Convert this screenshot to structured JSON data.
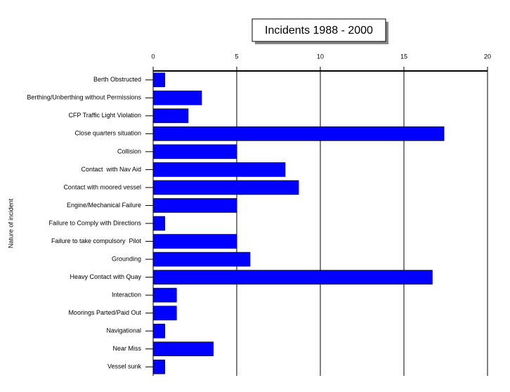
{
  "chart_data": {
    "type": "bar",
    "orientation": "horizontal",
    "title": "Incidents 1988 - 2000",
    "y_label": "Nature of incident",
    "categories": [
      "Berth Obstructed",
      "Berthing/Unberthing without Permissions",
      "CFP Traffic Light Violation",
      "Close quarters situation",
      "Collision",
      "Contact  with Nav Aid",
      "Contact with moored vessel",
      "Engine/Mechanical Failure",
      "Failure to Comply with Directions",
      "Failure to take compulsory  Pilot",
      "Grounding",
      "Heavy Contact with Quay",
      "Interaction",
      "Moorings Parted/Paid Out",
      "Navigational",
      "Near Miss",
      "Vessel sunk"
    ],
    "values": [
      0.7,
      2.9,
      2.1,
      17.4,
      5,
      7.9,
      8.7,
      5,
      0.7,
      5,
      5.8,
      16.7,
      1.4,
      1.4,
      0.7,
      3.6,
      0.7
    ],
    "color": "#0000ff",
    "xlim": [
      0,
      20
    ],
    "xticks": [
      0,
      5,
      10,
      15,
      20
    ],
    "grid": true
  }
}
